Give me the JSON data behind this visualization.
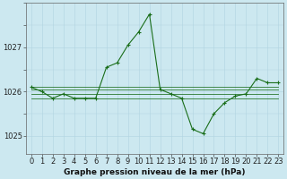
{
  "title": "Graphe pression niveau de la mer (hPa)",
  "background_color": "#cce8f0",
  "grid_color_major": "#b0d4e0",
  "grid_color_minor": "#c0dce8",
  "line_color": "#1a6e1a",
  "hours": [
    0,
    1,
    2,
    3,
    4,
    5,
    6,
    7,
    8,
    9,
    10,
    11,
    12,
    13,
    14,
    15,
    16,
    17,
    18,
    19,
    20,
    21,
    22,
    23
  ],
  "pressure_main": [
    1026.1,
    1026.0,
    1025.85,
    1025.95,
    1025.85,
    1025.85,
    1025.85,
    1026.55,
    1026.65,
    1027.05,
    1027.35,
    1027.75,
    1026.05,
    1025.95,
    1025.85,
    1025.15,
    1025.05,
    1025.5,
    1025.75,
    1025.9,
    1025.95,
    1026.3,
    1026.2,
    1026.2
  ],
  "flat_line1": [
    1025.85,
    1025.85,
    1025.85,
    1025.85,
    1025.85,
    1025.85,
    1025.85,
    1025.85,
    1025.85,
    1025.85,
    1025.85,
    1025.85,
    1025.85,
    1025.85,
    1025.85,
    1025.85,
    1025.85,
    1025.85,
    1025.85,
    1025.85,
    1025.85,
    1025.85,
    1025.85,
    1025.85
  ],
  "flat_line2": [
    1025.95,
    1025.95,
    1025.95,
    1025.95,
    1025.95,
    1025.95,
    1025.95,
    1025.95,
    1025.95,
    1025.95,
    1025.95,
    1025.95,
    1025.95,
    1025.95,
    1025.95,
    1025.95,
    1025.95,
    1025.95,
    1025.95,
    1025.95,
    1025.95,
    1025.95,
    1025.95,
    1025.95
  ],
  "flat_line3": [
    1026.05,
    1026.05,
    1026.05,
    1026.05,
    1026.05,
    1026.05,
    1026.05,
    1026.05,
    1026.05,
    1026.05,
    1026.05,
    1026.05,
    1026.05,
    1026.05,
    1026.05,
    1026.05,
    1026.05,
    1026.05,
    1026.05,
    1026.05,
    1026.05,
    1026.05,
    1026.05,
    1026.05
  ],
  "flat_line4": [
    1026.1,
    1026.1,
    1026.1,
    1026.1,
    1026.1,
    1026.1,
    1026.1,
    1026.1,
    1026.1,
    1026.1,
    1026.1,
    1026.1,
    1026.1,
    1026.1,
    1026.1,
    1026.1,
    1026.1,
    1026.1,
    1026.1,
    1026.1,
    1026.1,
    1026.1,
    1026.1,
    1026.1
  ],
  "ylim_min": 1024.6,
  "ylim_max": 1028.0,
  "yticks": [
    1025,
    1026,
    1027
  ],
  "tick_fontsize": 6,
  "title_fontsize": 6.5,
  "figwidth": 3.2,
  "figheight": 2.0,
  "dpi": 100
}
